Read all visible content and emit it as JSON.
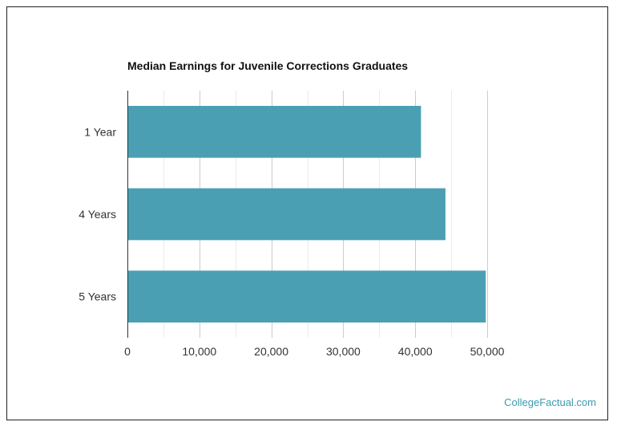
{
  "chart_data": {
    "type": "bar",
    "orientation": "horizontal",
    "title": "Median Earnings for Juvenile Corrections Graduates",
    "xlabel": "",
    "ylabel": "",
    "categories": [
      "1 Year",
      "4 Years",
      "5 Years"
    ],
    "values": [
      40800,
      44200,
      49800
    ],
    "xlim": [
      0,
      50000
    ],
    "ticks": [
      0,
      10000,
      20000,
      30000,
      40000,
      50000
    ],
    "tick_labels": [
      "0",
      "10,000",
      "20,000",
      "30,000",
      "40,000",
      "50,000"
    ],
    "grid": true,
    "legend": "none",
    "bar_color": "#4aa0b2"
  },
  "watermark": "CollegeFactual.com"
}
